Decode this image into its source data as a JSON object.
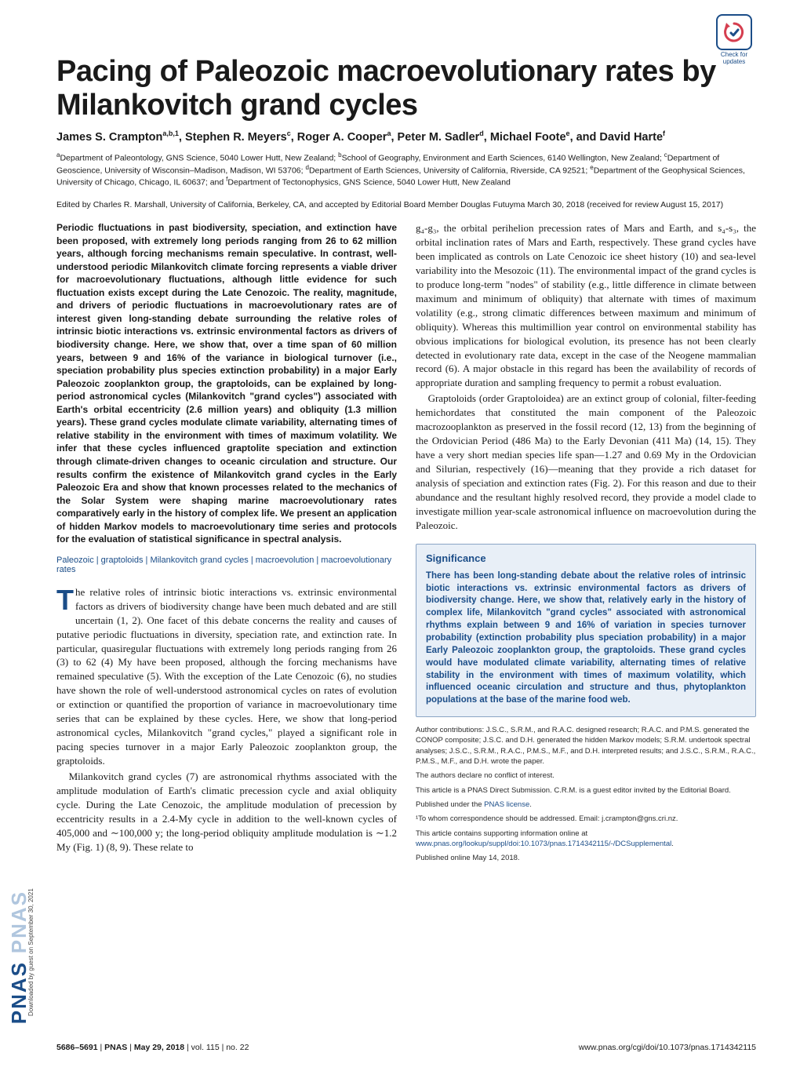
{
  "brand_strip": {
    "text": "PNAS",
    "shadow_text": "PNAS",
    "color": "#1b4d88"
  },
  "download_note": "Downloaded by guest on September 30, 2021",
  "check_updates": {
    "line1": "Check for",
    "line2": "updates"
  },
  "title": "Pacing of Paleozoic macroevolutionary rates by Milankovitch grand cycles",
  "authors_html": "James S. Crampton<sup>a,b,1</sup>, Stephen R. Meyers<sup>c</sup>, Roger A. Cooper<sup>a</sup>, Peter M. Sadler<sup>d</sup>, Michael Foote<sup>e</sup>, and David Harte<sup>f</sup>",
  "affiliations_html": "<sup>a</sup>Department of Paleontology, GNS Science, 5040 Lower Hutt, New Zealand; <sup>b</sup>School of Geography, Environment and Earth Sciences, 6140 Wellington, New Zealand; <sup>c</sup>Department of Geoscience, University of Wisconsin–Madison, Madison, WI 53706; <sup>d</sup>Department of Earth Sciences, University of California, Riverside, CA 92521; <sup>e</sup>Department of the Geophysical Sciences, University of Chicago, Chicago, IL 60637; and <sup>f</sup>Department of Tectonophysics, GNS Science, 5040 Lower Hutt, New Zealand",
  "edited": "Edited by Charles R. Marshall, University of California, Berkeley, CA, and accepted by Editorial Board Member Douglas Futuyma March 30, 2018 (received for review August 15, 2017)",
  "abstract": "Periodic fluctuations in past biodiversity, speciation, and extinction have been proposed, with extremely long periods ranging from 26 to 62 million years, although forcing mechanisms remain speculative. In contrast, well-understood periodic Milankovitch climate forcing represents a viable driver for macroevolutionary fluctuations, although little evidence for such fluctuation exists except during the Late Cenozoic. The reality, magnitude, and drivers of periodic fluctuations in macroevolutionary rates are of interest given long-standing debate surrounding the relative roles of intrinsic biotic interactions vs. extrinsic environmental factors as drivers of biodiversity change. Here, we show that, over a time span of 60 million years, between 9 and 16% of the variance in biological turnover (i.e., speciation probability plus species extinction probability) in a major Early Paleozoic zooplankton group, the graptoloids, can be explained by long-period astronomical cycles (Milankovitch \"grand cycles\") associated with Earth's orbital eccentricity (2.6 million years) and obliquity (1.3 million years). These grand cycles modulate climate variability, alternating times of relative stability in the environment with times of maximum volatility. We infer that these cycles influenced graptolite speciation and extinction through climate-driven changes to oceanic circulation and structure. Our results confirm the existence of Milankovitch grand cycles in the Early Paleozoic Era and show that known processes related to the mechanics of the Solar System were shaping marine macroevolutionary rates comparatively early in the history of complex life. We present an application of hidden Markov models to macroevolutionary time series and protocols for the evaluation of statistical significance in spectral analysis.",
  "keywords": "Paleozoic | graptoloids | Milankovitch grand cycles | macroevolution | macroevolutionary rates",
  "body_left": {
    "p1_first_char": "T",
    "p1_rest": "he relative roles of intrinsic biotic interactions vs. extrinsic environmental factors as drivers of biodiversity change have been much debated and are still uncertain (1, 2). One facet of this debate concerns the reality and causes of putative periodic fluctuations in diversity, speciation rate, and extinction rate. In particular, quasiregular fluctuations with extremely long periods ranging from 26 (3) to 62 (4) My have been proposed, although the forcing mechanisms have remained speculative (5). With the exception of the Late Cenozoic (6), no studies have shown the role of well-understood astronomical cycles on rates of evolution or extinction or quantified the proportion of variance in macroevolutionary time series that can be explained by these cycles. Here, we show that long-period astronomical cycles, Milankovitch \"grand cycles,\" played a significant role in pacing species turnover in a major Early Paleozoic zooplankton group, the graptoloids.",
    "p2": "Milankovitch grand cycles (7) are astronomical rhythms associated with the amplitude modulation of Earth's climatic precession cycle and axial obliquity cycle. During the Late Cenozoic, the amplitude modulation of precession by eccentricity results in a 2.4-My cycle in addition to the well-known cycles of 405,000 and ∼100,000 y; the long-period obliquity amplitude modulation is ∼1.2 My (Fig. 1) (8, 9). These relate to"
  },
  "body_right": {
    "p1": "g₄-g₃, the orbital perihelion precession rates of Mars and Earth, and s₄-s₃, the orbital inclination rates of Mars and Earth, respectively. These grand cycles have been implicated as controls on Late Cenozoic ice sheet history (10) and sea-level variability into the Mesozoic (11). The environmental impact of the grand cycles is to produce long-term \"nodes\" of stability (e.g., little difference in climate between maximum and minimum of obliquity) that alternate with times of maximum volatility (e.g., strong climatic differences between maximum and minimum of obliquity). Whereas this multimillion year control on environmental stability has obvious implications for biological evolution, its presence has not been clearly detected in evolutionary rate data, except in the case of the Neogene mammalian record (6). A major obstacle in this regard has been the availability of records of appropriate duration and sampling frequency to permit a robust evaluation.",
    "p2": "Graptoloids (order Graptoloidea) are an extinct group of colonial, filter-feeding hemichordates that constituted the main component of the Paleozoic macrozooplankton as preserved in the fossil record (12, 13) from the beginning of the Ordovician Period (486 Ma) to the Early Devonian (411 Ma) (14, 15). They have a very short median species life span—1.27 and 0.69 My in the Ordovician and Silurian, respectively (16)—meaning that they provide a rich dataset for analysis of speciation and extinction rates (Fig. 2). For this reason and due to their abundance and the resultant highly resolved record, they provide a model clade to investigate million year-scale astronomical influence on macroevolution during the Paleozoic."
  },
  "significance": {
    "heading": "Significance",
    "text": "There has been long-standing debate about the relative roles of intrinsic biotic interactions vs. extrinsic environmental factors as drivers of biodiversity change. Here, we show that, relatively early in the history of complex life, Milankovitch \"grand cycles\" associated with astronomical rhythms explain between 9 and 16% of variation in species turnover probability (extinction probability plus speciation probability) in a major Early Paleozoic zooplankton group, the graptoloids. These grand cycles would have modulated climate variability, alternating times of relative stability in the environment with times of maximum volatility, which influenced oceanic circulation and structure and thus, phytoplankton populations at the base of the marine food web."
  },
  "meta": {
    "contributions": "Author contributions: J.S.C., S.R.M., and R.A.C. designed research; R.A.C. and P.M.S. generated the CONOP composite; J.S.C. and D.H. generated the hidden Markov models; S.R.M. undertook spectral analyses; J.S.C., S.R.M., R.A.C., P.M.S., M.F., and D.H. interpreted results; and J.S.C., S.R.M., R.A.C., P.M.S., M.F., and D.H. wrote the paper.",
    "conflict": "The authors declare no conflict of interest.",
    "direct": "This article is a PNAS Direct Submission. C.R.M. is a guest editor invited by the Editorial Board.",
    "license_prefix": "Published under the ",
    "license_link_text": "PNAS license",
    "license_suffix": ".",
    "correspondence": "¹To whom correspondence should be addressed. Email: j.crampton@gns.cri.nz.",
    "si_prefix": "This article contains supporting information online at ",
    "si_link_text": "www.pnas.org/lookup/suppl/doi:10.1073/pnas.1714342115/-/DCSupplemental",
    "si_suffix": ".",
    "published": "Published online May 14, 2018."
  },
  "footer": {
    "pages": "5686–5691",
    "sep": " | ",
    "brand": "PNAS",
    "date": "May 29, 2018",
    "vol": "vol. 115",
    "no": "no. 22",
    "doi": "www.pnas.org/cgi/doi/10.1073/pnas.1714342115"
  },
  "style": {
    "brand_color": "#1b4d88",
    "sigbox_bg": "#e8eff7",
    "sigbox_border": "#8aa4c4"
  }
}
